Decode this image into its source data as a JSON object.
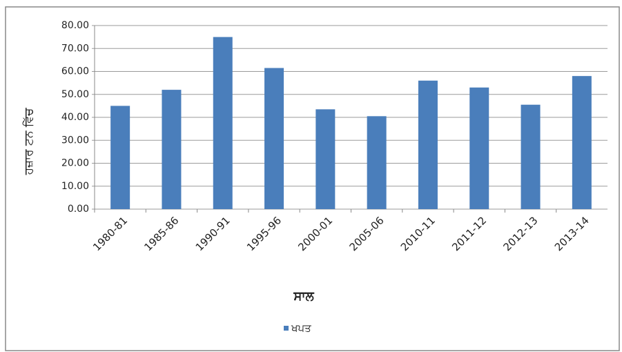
{
  "chart_data": {
    "type": "bar",
    "y_label": "ਹਜ਼ਾਰ ਟਨ ਵਿੱਚ",
    "x_label": "ਸਾਲ",
    "categories": [
      "1980-81",
      "1985-86",
      "1990-91",
      "1995-96",
      "2000-01",
      "2005-06",
      "2010-11",
      "2011-12",
      "2012-13",
      "2013-14"
    ],
    "series": [
      {
        "name": "ਖਪਤ",
        "color": "#4a7ebb",
        "values": [
          45,
          52,
          75,
          61.5,
          43.5,
          40.5,
          56,
          53,
          45.5,
          58
        ]
      }
    ],
    "ylim": [
      0,
      80
    ],
    "yticks": [
      {
        "value": 0,
        "label": "0.00"
      },
      {
        "value": 10,
        "label": "10.00"
      },
      {
        "value": 20,
        "label": "20.00"
      },
      {
        "value": 30,
        "label": "30.00"
      },
      {
        "value": 40,
        "label": "40.00"
      },
      {
        "value": 50,
        "label": "50.00"
      },
      {
        "value": 60,
        "label": "60.00"
      },
      {
        "value": 70,
        "label": "70.00"
      },
      {
        "value": 80,
        "label": "80.00"
      }
    ],
    "grid": true,
    "legend": "bottom"
  }
}
